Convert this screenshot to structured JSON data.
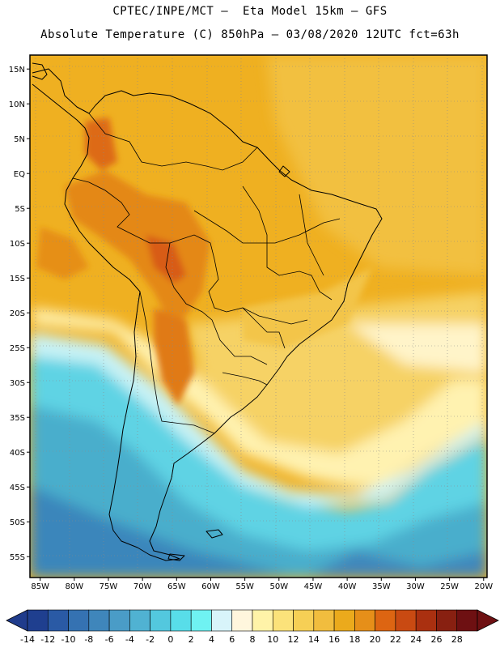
{
  "header": {
    "line1": "CPTEC/INPE/MCT –  Eta Model 15km – GFS",
    "line2": "Absolute Temperature (C) 850hPa – 03/08/2020 12UTC fct=63h"
  },
  "map": {
    "lat_labels": [
      "15N",
      "10N",
      "5N",
      "EQ",
      "5S",
      "10S",
      "15S",
      "20S",
      "25S",
      "30S",
      "35S",
      "40S",
      "45S",
      "50S",
      "55S"
    ],
    "lon_labels": [
      "85W",
      "80W",
      "75W",
      "70W",
      "65W",
      "60W",
      "55W",
      "50W",
      "45W",
      "40W",
      "35W",
      "30W",
      "25W",
      "20W"
    ],
    "extent": {
      "lon_min": -86.5,
      "lon_max": -19.5,
      "lat_min": -58,
      "lat_max": 17
    }
  },
  "colorbar": {
    "labels": [
      "-14",
      "-12",
      "-10",
      "-8",
      "-6",
      "-4",
      "-2",
      "0",
      "2",
      "4",
      "6",
      "8",
      "10",
      "12",
      "14",
      "16",
      "18",
      "20",
      "22",
      "24",
      "26",
      "28"
    ],
    "colors": [
      "#1f3f8f",
      "#2a5aa5",
      "#3572b2",
      "#3f86bb",
      "#4a9cc7",
      "#50b2d2",
      "#53c8de",
      "#58dde9",
      "#6ff2f2",
      "#d8f4fa",
      "#fff6dd",
      "#fff3a8",
      "#fbe27a",
      "#f6cf55",
      "#f1bd3e",
      "#ebaa1c",
      "#e68f19",
      "#dd6512",
      "#c94a12",
      "#aa3010",
      "#882011",
      "#6e1012"
    ],
    "range_min": -14,
    "range_max": 28
  }
}
